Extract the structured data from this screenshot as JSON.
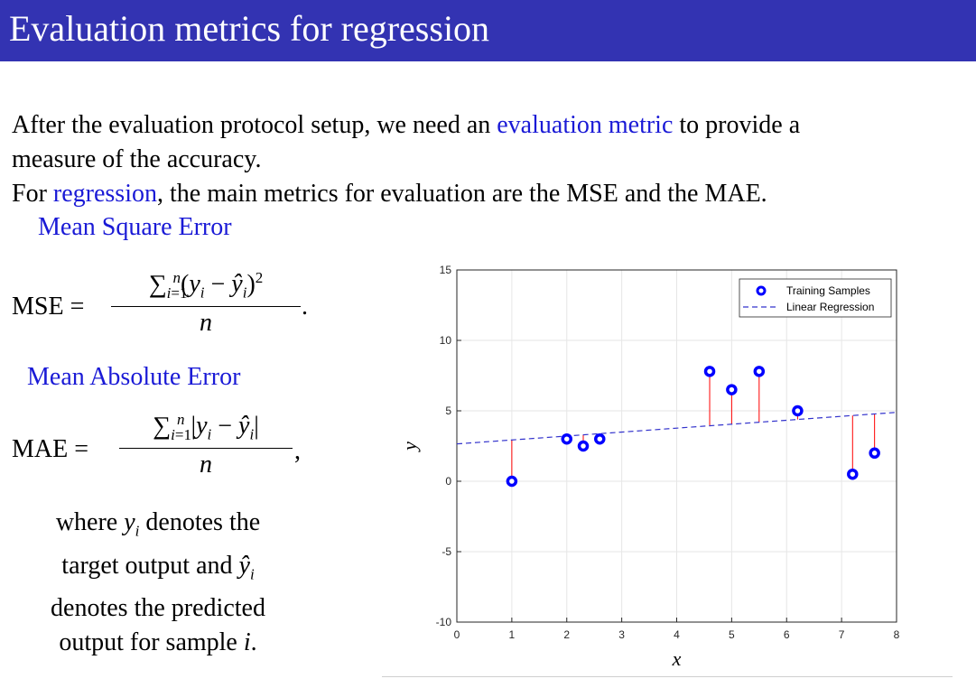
{
  "slide": {
    "title": "Evaluation metrics for regression",
    "para1_a": "After the evaluation protocol setup, we need an ",
    "para1_link": "evaluation metric",
    "para1_b": " to provide a",
    "para1_line2": "measure of the accuracy.",
    "para2_a": "For ",
    "para2_link": "regression",
    "para2_b": ", the main metrics for evaluation are the MSE and the MAE.",
    "mse_heading": "Mean Square Error",
    "mse_lhs": "MSE =",
    "mae_heading": "Mean Absolute Error",
    "mae_lhs": "MAE =",
    "note_line1": "where",
    "note_line1b": "denotes the",
    "note_line2": "target output and",
    "note_line3": "denotes the predicted",
    "note_line4": "output for sample",
    "colors": {
      "title_bar": "#3333b2",
      "link": "#1a1ad6"
    }
  },
  "chart_data": {
    "type": "scatter",
    "xlabel": "x",
    "ylabel": "y",
    "xlim": [
      0,
      8
    ],
    "ylim": [
      -10,
      15
    ],
    "xticks": [
      0,
      1,
      2,
      3,
      4,
      5,
      6,
      7,
      8
    ],
    "yticks": [
      -10,
      -5,
      0,
      5,
      10,
      15
    ],
    "grid": true,
    "legend_position": "top-right",
    "series": [
      {
        "name": "Training Samples",
        "style": "markers",
        "color": "#0000ff",
        "points": [
          [
            1.0,
            0.0
          ],
          [
            2.0,
            3.0
          ],
          [
            2.3,
            2.5
          ],
          [
            2.6,
            3.0
          ],
          [
            4.6,
            7.8
          ],
          [
            5.0,
            6.5
          ],
          [
            5.5,
            7.8
          ],
          [
            6.2,
            5.0
          ],
          [
            7.2,
            0.5
          ],
          [
            7.6,
            2.0
          ]
        ]
      },
      {
        "name": "Linear Regression",
        "style": "dashed-line",
        "color": "#3333cc",
        "intercept": 2.65,
        "slope": 0.28
      }
    ],
    "residual_color": "#ff0000"
  }
}
